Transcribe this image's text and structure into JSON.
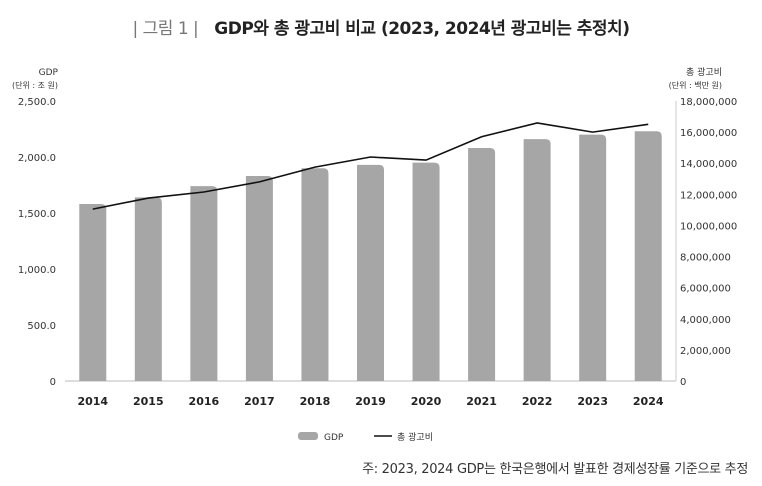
{
  "figure_label": "| 그림 1 |",
  "chart_data": {
    "type": "bar+line",
    "title": "GDP와 총 광고비 비교 (2023, 2024년 광고비는 추정치)",
    "categories": [
      "2014",
      "2015",
      "2016",
      "2017",
      "2018",
      "2019",
      "2020",
      "2021",
      "2022",
      "2023",
      "2024"
    ],
    "series": [
      {
        "name": "GDP",
        "type": "bar",
        "axis": "left",
        "color": "#a6a6a6",
        "values": [
          1580,
          1640,
          1740,
          1830,
          1900,
          1930,
          1950,
          2080,
          2160,
          2200,
          2230
        ]
      },
      {
        "name": "총 광고비",
        "type": "line",
        "axis": "right",
        "color": "#111111",
        "values": [
          11050000,
          11760000,
          12150000,
          12800000,
          13750000,
          14400000,
          14200000,
          15700000,
          16590000,
          16000000,
          16500000
        ]
      }
    ],
    "left_axis": {
      "label": "GDP",
      "unit": "(단위 : 조 원)",
      "ylim": [
        0,
        2500
      ],
      "ticks": [
        "0",
        "500.0",
        "1,000.0",
        "1,500.0",
        "2,000.0",
        "2,500.0"
      ]
    },
    "right_axis": {
      "label": "총 광고비",
      "unit": "(단위 : 백만 원)",
      "ylim": [
        0,
        18000000
      ],
      "ticks": [
        "0",
        "2,000,000",
        "4,000,000",
        "6,000,000",
        "8,000,000",
        "10,000,000",
        "12,000,000",
        "14,000,000",
        "16,000,000",
        "18,000,000"
      ]
    },
    "grid": false,
    "legend_position": "bottom"
  },
  "note": "주: 2023, 2024 GDP는 한국은행에서 발표한 경제성장률 기준으로 추정"
}
